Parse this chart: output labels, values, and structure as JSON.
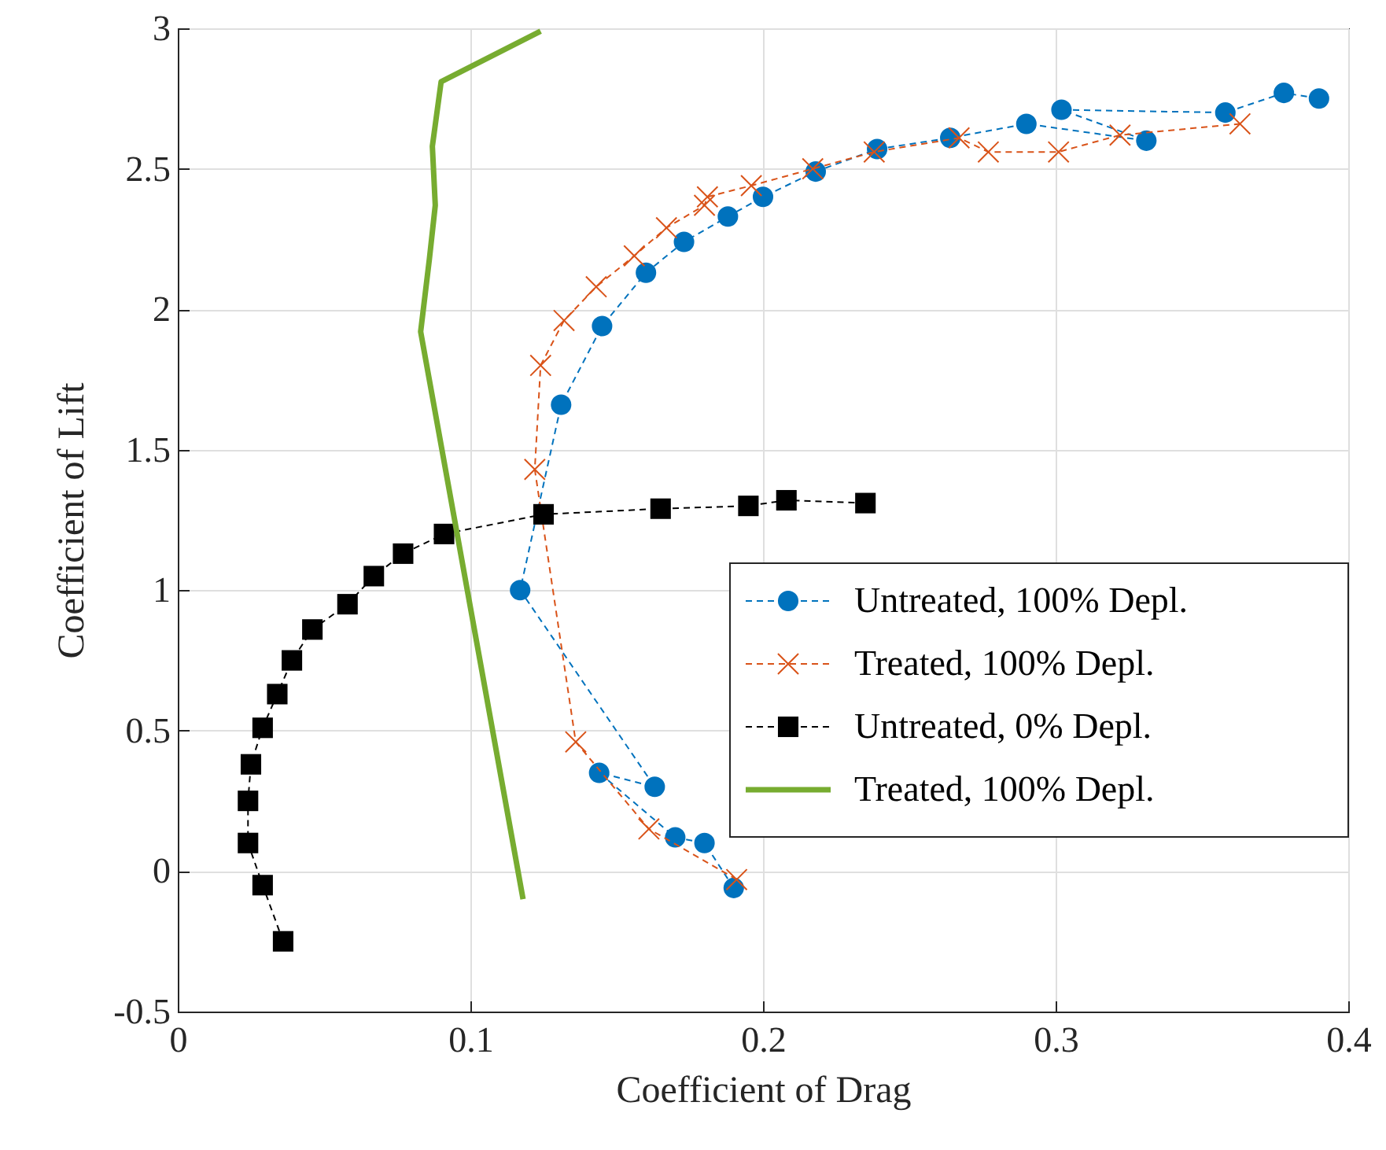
{
  "chart_data": {
    "type": "line",
    "xlabel": "Coefficient of Drag",
    "ylabel": "Coefficient of Lift",
    "xlim": [
      0,
      0.4
    ],
    "xticks": [
      0,
      0.1,
      0.2,
      0.3,
      0.4
    ],
    "ylim": [
      -0.5,
      3
    ],
    "yticks": [
      -0.5,
      0,
      0.5,
      1,
      1.5,
      2,
      2.5,
      3
    ],
    "grid": true,
    "legend": "right",
    "series": [
      {
        "name": "Untreated, 100% Depl.",
        "color": "#0072bd",
        "marker": "circle",
        "line_style": "dashed",
        "x": [
          0.19,
          0.18,
          0.17,
          0.144,
          0.163,
          0.117,
          0.131,
          0.145,
          0.16,
          0.173,
          0.188,
          0.2,
          0.218,
          0.239,
          0.264,
          0.29,
          0.331,
          0.302,
          0.358,
          0.378,
          0.39
        ],
        "values": [
          -0.06,
          0.1,
          0.12,
          0.35,
          0.3,
          1.0,
          1.66,
          1.94,
          2.13,
          2.24,
          2.33,
          2.4,
          2.49,
          2.57,
          2.61,
          2.66,
          2.6,
          2.71,
          2.7,
          2.77,
          2.75
        ]
      },
      {
        "name": "Treated, 100% Depl.",
        "color": "#d95319",
        "marker": "cross",
        "line_style": "dashed",
        "x": [
          0.191,
          0.161,
          0.136,
          0.122,
          0.124,
          0.132,
          0.143,
          0.156,
          0.167,
          0.18,
          0.181,
          0.196,
          0.217,
          0.238,
          0.267,
          0.277,
          0.301,
          0.322,
          0.363
        ],
        "values": [
          -0.03,
          0.15,
          0.46,
          1.43,
          1.8,
          1.96,
          2.08,
          2.19,
          2.29,
          2.37,
          2.4,
          2.44,
          2.5,
          2.56,
          2.61,
          2.56,
          2.56,
          2.62,
          2.66
        ]
      },
      {
        "name": "Untreated, 0% Depl.",
        "color": "#000000",
        "marker": "square",
        "line_style": "dashed",
        "x": [
          0.036,
          0.029,
          0.024,
          0.024,
          0.025,
          0.029,
          0.034,
          0.039,
          0.046,
          0.058,
          0.067,
          0.077,
          0.091,
          0.125,
          0.165,
          0.195,
          0.208,
          0.235
        ],
        "values": [
          -0.25,
          -0.05,
          0.1,
          0.25,
          0.38,
          0.51,
          0.63,
          0.75,
          0.86,
          0.95,
          1.05,
          1.13,
          1.2,
          1.27,
          1.29,
          1.3,
          1.32,
          1.31
        ]
      },
      {
        "name": "Treated, 100% Depl.",
        "color": "#77ac30",
        "marker": "none",
        "line_style": "solid",
        "x": [
          0.118,
          0.083,
          0.086,
          0.088,
          0.087,
          0.09,
          0.124
        ],
        "values": [
          -0.1,
          1.92,
          2.18,
          2.37,
          2.58,
          2.81,
          2.99
        ]
      }
    ]
  }
}
